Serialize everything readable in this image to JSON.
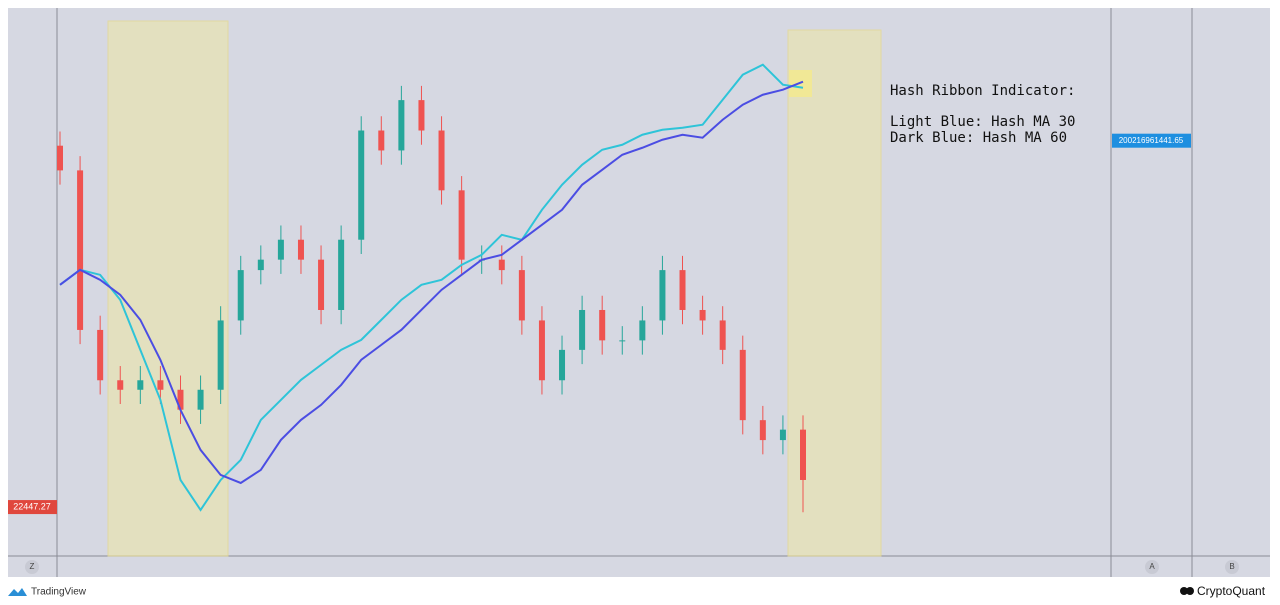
{
  "chart_data": {
    "type": "candlestick",
    "open": [
      60500,
      57900,
      41100,
      35800,
      34800,
      35800,
      34800,
      32700,
      34800,
      42100,
      47400,
      48500,
      50600,
      48500,
      43200,
      50600,
      62100,
      60000,
      65300,
      62100,
      55800,
      48500,
      48500,
      47400,
      42100,
      35800,
      39000,
      43200,
      40000,
      40000,
      42100,
      47400,
      43200,
      42100,
      39000,
      31600,
      29500,
      30600
    ],
    "high": [
      62000,
      59400,
      42600,
      37300,
      37300,
      37300,
      36300,
      36300,
      43600,
      48900,
      50000,
      52100,
      52100,
      50000,
      52100,
      63600,
      63600,
      66800,
      66800,
      63600,
      57300,
      50000,
      50000,
      48900,
      43600,
      40500,
      44700,
      44700,
      41500,
      43600,
      48900,
      48900,
      44700,
      43600,
      40500,
      33100,
      32100,
      32100
    ],
    "low": [
      56400,
      39600,
      34300,
      33300,
      33300,
      33300,
      31200,
      31200,
      33300,
      40600,
      45900,
      47000,
      47000,
      41700,
      41700,
      49100,
      58500,
      58500,
      60600,
      54300,
      47000,
      47000,
      45900,
      40600,
      34300,
      34300,
      37500,
      38500,
      38500,
      38500,
      40600,
      41700,
      40600,
      37500,
      30100,
      28000,
      28000,
      21900
    ],
    "close": [
      57900,
      41100,
      35800,
      34800,
      35800,
      34800,
      32700,
      34800,
      42100,
      47400,
      48500,
      50600,
      48500,
      43200,
      50600,
      62100,
      60000,
      65300,
      62100,
      55800,
      48500,
      48500,
      47400,
      42100,
      35800,
      39000,
      43200,
      40000,
      40000,
      42100,
      47400,
      43200,
      42100,
      39000,
      31600,
      29500,
      30600,
      25300
    ],
    "up_color": "#26a69a",
    "down_color": "#ef5350",
    "series": [
      {
        "color": "#2ec4d8",
        "axis": "y2",
        "values": [
          157000000000.0,
          161500000000.0,
          160000000000.0,
          152500000000.0,
          137500000000.0,
          122500000000.0,
          98500000000.0,
          89500000000.0,
          98500000000.0,
          104500000000.0,
          116500000000.0,
          122500000000.0,
          128500000000.0,
          133000000000.0,
          137500000000.0,
          140500000000.0,
          146500000000.0,
          152500000000.0,
          157000000000.0,
          158500000000.0,
          163000000000.0,
          166000000000.0,
          172000000000.0,
          170500000000.0,
          179500000000.0,
          187000000000.0,
          193000000000.0,
          197500000000.0,
          199000000000.0,
          202000000000.0,
          203500000000.0,
          204100000000.0,
          205000000000.0,
          212500000000.0,
          220000000000.0,
          223000000000.0,
          217000000000.0,
          216100000000.0
        ]
      },
      {
        "color": "#4b4de3",
        "axis": "y2",
        "values": [
          157000000000.0,
          161500000000.0,
          158500000000.0,
          154000000000.0,
          146500000000.0,
          134500000000.0,
          119500000000.0,
          107500000000.0,
          100000000000.0,
          97600000000.0,
          101500000000.0,
          110500000000.0,
          116500000000.0,
          121000000000.0,
          127000000000.0,
          134500000000.0,
          139000000000.0,
          143500000000.0,
          149500000000.0,
          155500000000.0,
          160000000000.0,
          164500000000.0,
          166000000000.0,
          170500000000.0,
          175000000000.0,
          179500000000.0,
          187000000000.0,
          191500000000.0,
          196000000000.0,
          198100000000.0,
          200500000000.0,
          202000000000.0,
          201100000000.0,
          206500000000.0,
          211000000000.0,
          214000000000.0,
          215500000000.0,
          217900000000.0
        ]
      }
    ],
    "ylim": [
      17400,
      75000
    ],
    "y2lim": [
      76000000000.0,
      240000000000.0
    ],
    "last_price": 22447.27,
    "hash_value": 200216961441.65,
    "annotation": [
      "Hash Ribbon Indicator:",
      "Light Blue: Hash MA 30",
      "Dark Blue: Hash MA 60"
    ]
  },
  "ui": {
    "axis_buttons": [
      "Z",
      "A",
      "B"
    ],
    "brand_left": "TradingView",
    "brand_right": "CryptoQuant"
  }
}
